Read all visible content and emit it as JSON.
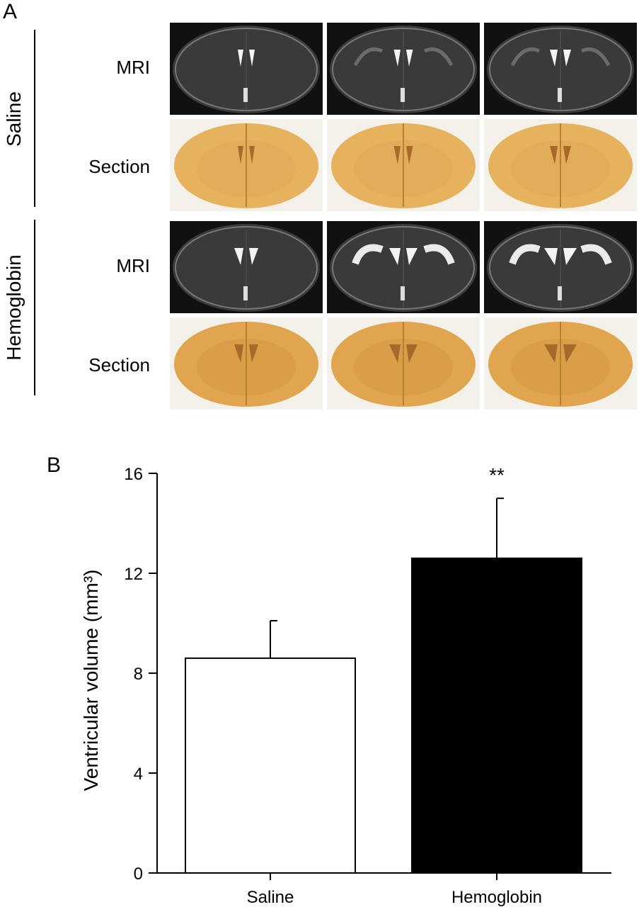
{
  "panel_a": {
    "label": "A",
    "groups": [
      {
        "name": "Saline",
        "rows": [
          "MRI",
          "Section"
        ]
      },
      {
        "name": "Hemoglobin",
        "rows": [
          "MRI",
          "Section"
        ]
      }
    ],
    "colors": {
      "mri_bg": "#3a3a3a",
      "section_bg": "#e6b25e",
      "section_card": "#f4f1ea"
    }
  },
  "panel_b": {
    "label": "B"
  },
  "chart_data": {
    "type": "bar",
    "categories": [
      "Saline",
      "Hemoglobin"
    ],
    "values": [
      8.6,
      12.6
    ],
    "errors": [
      1.5,
      2.4
    ],
    "bar_colors": [
      "#ffffff",
      "#000000"
    ],
    "ylabel": "Ventricular volume (mm³)",
    "ylim": [
      0,
      16
    ],
    "yticks": [
      0,
      4,
      8,
      12,
      16
    ],
    "annotations": [
      {
        "category": "Hemoglobin",
        "text": "**"
      }
    ],
    "grid": false
  }
}
